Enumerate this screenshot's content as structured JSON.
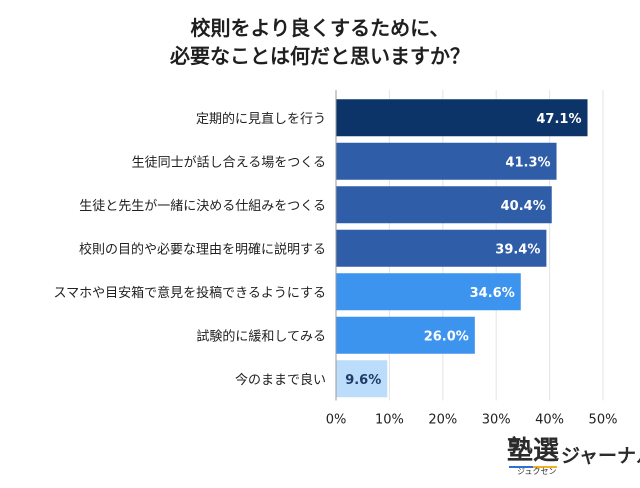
{
  "title_lines": [
    "校則をより良くするために、",
    "必要なことは何だと思いますか？"
  ],
  "chart_data": {
    "type": "bar",
    "orientation": "horizontal",
    "categories": [
      "定期的に見直しを行う",
      "生徒同士が話し合える場をつくる",
      "生徒と先生が一緒に決める仕組みをつくる",
      "校則の目的や必要な理由を明確に説明する",
      "スマホや目安箱で意見を投稿できるようにする",
      "試験的に緩和してみる",
      "今のままで良い"
    ],
    "values": [
      47.1,
      41.3,
      40.4,
      39.4,
      34.6,
      26.0,
      9.6
    ],
    "value_labels": [
      "47.1%",
      "41.3%",
      "40.4%",
      "39.4%",
      "34.6%",
      "26.0%",
      "9.6%"
    ],
    "bar_colors": [
      "#0d3468",
      "#2f5da8",
      "#2f5da8",
      "#2f5da8",
      "#3d94ee",
      "#3d94ee",
      "#bcdcfb"
    ],
    "label_colors": [
      "#ffffff",
      "#ffffff",
      "#ffffff",
      "#ffffff",
      "#ffffff",
      "#ffffff",
      "#1f3a66"
    ],
    "xlim": [
      0,
      50
    ],
    "xticks": [
      0,
      10,
      20,
      30,
      40,
      50
    ],
    "xtick_labels": [
      "0%",
      "10%",
      "20%",
      "30%",
      "40%",
      "50%"
    ],
    "title": "校則をより良くするために、必要なことは何だと思いますか？",
    "xlabel": "",
    "ylabel": ""
  },
  "logo": {
    "kanji": "塾選",
    "kana": "ジャーナル",
    "reading": "ジュクセン"
  }
}
